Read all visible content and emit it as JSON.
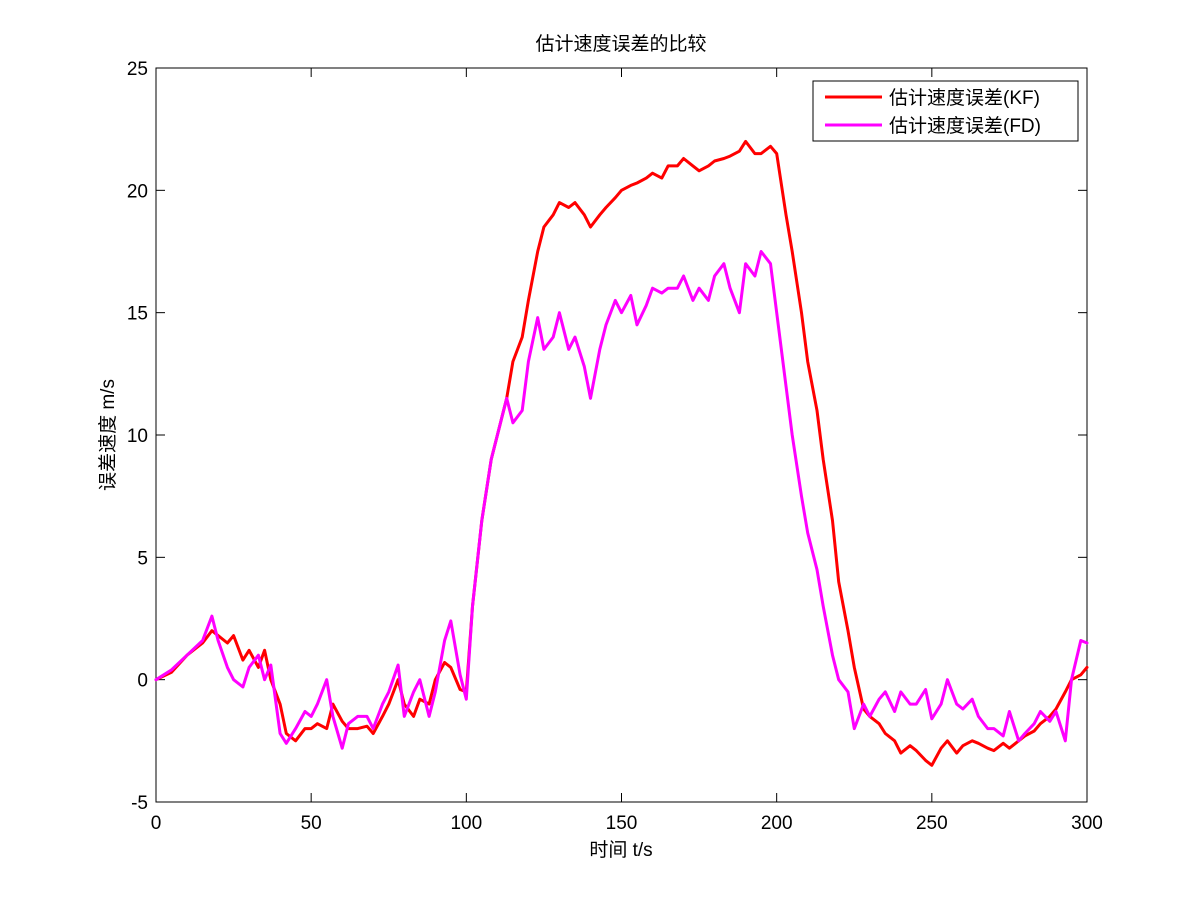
{
  "chart_data": {
    "type": "line",
    "title": "估计速度误差的比较",
    "xlabel": "时间 t/s",
    "ylabel": "误差速度 m/s",
    "xlim": [
      0,
      300
    ],
    "ylim": [
      -5,
      25
    ],
    "xticks": [
      0,
      50,
      100,
      150,
      200,
      250,
      300
    ],
    "yticks": [
      -5,
      0,
      5,
      10,
      15,
      20,
      25
    ],
    "grid": false,
    "legend_position": "top-right",
    "series": [
      {
        "name": "估计速度误差(KF)",
        "color": "#ff0000",
        "x": [
          0,
          5,
          10,
          15,
          18,
          20,
          23,
          25,
          28,
          30,
          33,
          35,
          37,
          40,
          42,
          45,
          48,
          50,
          52,
          55,
          57,
          60,
          62,
          65,
          68,
          70,
          73,
          75,
          78,
          80,
          83,
          85,
          88,
          90,
          93,
          95,
          98,
          100,
          102,
          105,
          108,
          110,
          113,
          115,
          118,
          120,
          123,
          125,
          128,
          130,
          133,
          135,
          138,
          140,
          143,
          145,
          148,
          150,
          153,
          155,
          158,
          160,
          163,
          165,
          168,
          170,
          173,
          175,
          178,
          180,
          183,
          185,
          188,
          190,
          193,
          195,
          198,
          200,
          203,
          205,
          208,
          210,
          213,
          215,
          218,
          220,
          223,
          225,
          228,
          230,
          233,
          235,
          238,
          240,
          243,
          245,
          248,
          250,
          253,
          255,
          258,
          260,
          263,
          265,
          268,
          270,
          273,
          275,
          278,
          280,
          283,
          285,
          288,
          290,
          293,
          295,
          298,
          300
        ],
        "y": [
          0,
          0.3,
          1,
          1.5,
          2,
          1.8,
          1.5,
          1.8,
          0.8,
          1.2,
          0.5,
          1.2,
          0,
          -1,
          -2.2,
          -2.5,
          -2,
          -2,
          -1.8,
          -2,
          -1,
          -1.7,
          -2,
          -2,
          -1.9,
          -2.2,
          -1.5,
          -1,
          0,
          -1,
          -1.5,
          -0.8,
          -1,
          0,
          0.7,
          0.5,
          -0.4,
          -0.5,
          3,
          6.5,
          9,
          10,
          11.5,
          13,
          14,
          15.5,
          17.5,
          18.5,
          19,
          19.5,
          19.3,
          19.5,
          19,
          18.5,
          19,
          19.3,
          19.7,
          20,
          20.2,
          20.3,
          20.5,
          20.7,
          20.5,
          21,
          21,
          21.3,
          21,
          20.8,
          21,
          21.2,
          21.3,
          21.4,
          21.6,
          22,
          21.5,
          21.5,
          21.8,
          21.5,
          19,
          17.5,
          15,
          13,
          11,
          9,
          6.5,
          4,
          2,
          0.5,
          -1.2,
          -1.5,
          -1.8,
          -2.2,
          -2.5,
          -3,
          -2.7,
          -2.9,
          -3.3,
          -3.5,
          -2.8,
          -2.5,
          -3,
          -2.7,
          -2.5,
          -2.6,
          -2.8,
          -2.9,
          -2.6,
          -2.8,
          -2.5,
          -2.3,
          -2.1,
          -1.8,
          -1.5,
          -1.2,
          -0.5,
          0,
          0.2,
          0.5
        ]
      },
      {
        "name": "估计速度误差(FD)",
        "color": "#ff00ff",
        "x": [
          0,
          5,
          10,
          15,
          18,
          20,
          23,
          25,
          28,
          30,
          33,
          35,
          37,
          40,
          42,
          45,
          48,
          50,
          52,
          55,
          57,
          60,
          62,
          65,
          68,
          70,
          73,
          75,
          78,
          80,
          83,
          85,
          88,
          90,
          93,
          95,
          98,
          100,
          102,
          105,
          108,
          110,
          113,
          115,
          118,
          120,
          123,
          125,
          128,
          130,
          133,
          135,
          138,
          140,
          143,
          145,
          148,
          150,
          153,
          155,
          158,
          160,
          163,
          165,
          168,
          170,
          173,
          175,
          178,
          180,
          183,
          185,
          188,
          190,
          193,
          195,
          198,
          200,
          203,
          205,
          208,
          210,
          213,
          215,
          218,
          220,
          223,
          225,
          228,
          230,
          233,
          235,
          238,
          240,
          243,
          245,
          248,
          250,
          253,
          255,
          258,
          260,
          263,
          265,
          268,
          270,
          273,
          275,
          278,
          280,
          283,
          285,
          288,
          290,
          293,
          295,
          298,
          300
        ],
        "y": [
          0,
          0.4,
          1,
          1.6,
          2.6,
          1.6,
          0.5,
          0,
          -0.3,
          0.5,
          1,
          0,
          0.6,
          -2.2,
          -2.6,
          -2,
          -1.3,
          -1.5,
          -1,
          0,
          -1.5,
          -2.8,
          -1.8,
          -1.5,
          -1.5,
          -2,
          -1,
          -0.5,
          0.6,
          -1.5,
          -0.5,
          0,
          -1.5,
          -0.5,
          1.6,
          2.4,
          0.2,
          -0.8,
          3,
          6.5,
          9,
          10,
          11.5,
          10.5,
          11,
          13,
          14.8,
          13.5,
          14,
          15,
          13.5,
          14,
          12.8,
          11.5,
          13.5,
          14.5,
          15.5,
          15,
          15.7,
          14.5,
          15.3,
          16,
          15.8,
          16,
          16,
          16.5,
          15.5,
          16,
          15.5,
          16.5,
          17,
          16,
          15,
          17,
          16.5,
          17.5,
          17,
          15,
          12,
          10,
          7.5,
          6,
          4.5,
          3,
          1,
          0,
          -0.5,
          -2,
          -1,
          -1.5,
          -0.8,
          -0.5,
          -1.3,
          -0.5,
          -1,
          -1,
          -0.4,
          -1.6,
          -1,
          0,
          -1,
          -1.2,
          -0.8,
          -1.5,
          -2,
          -2,
          -2.3,
          -1.3,
          -2.5,
          -2.2,
          -1.8,
          -1.3,
          -1.7,
          -1.3,
          -2.5,
          0,
          1.6,
          1.5
        ]
      }
    ]
  }
}
